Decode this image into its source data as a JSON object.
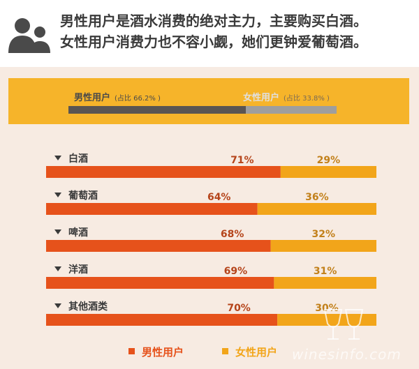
{
  "headline": {
    "line1": "男性用户是酒水消费的绝对主力，主要购买白酒。",
    "line2": "女性用户消费力也不容小觑，她们更钟爱葡萄酒。"
  },
  "summary": {
    "male_label": "男性用户",
    "male_share_text": "(占比 66.2% )",
    "female_label": "女性用户",
    "female_share_text": "(占比 33.8% )",
    "male_share": 0.662
  },
  "colors": {
    "male": "#e6521b",
    "female": "#f2a51a",
    "summary_bg": "#f6b42a",
    "page_bg": "#f7ebe2"
  },
  "chart_data": {
    "type": "bar",
    "stacked": true,
    "orientation": "horizontal",
    "categories": [
      "白酒",
      "葡萄酒",
      "啤酒",
      "洋酒",
      "其他酒类"
    ],
    "series": [
      {
        "name": "男性用户",
        "values": [
          71,
          64,
          68,
          69,
          70
        ],
        "labels": [
          "71%",
          "64%",
          "68%",
          "69%",
          "70%"
        ]
      },
      {
        "name": "女性用户",
        "values": [
          29,
          36,
          32,
          31,
          30
        ],
        "labels": [
          "29%",
          "36%",
          "32%",
          "31%",
          "30%"
        ]
      }
    ],
    "unit": "%",
    "xlim": [
      0,
      100
    ],
    "legend_position": "bottom"
  },
  "legend": {
    "male": "男性用户",
    "female": "女性用户"
  },
  "watermark": "winesinfo.com"
}
